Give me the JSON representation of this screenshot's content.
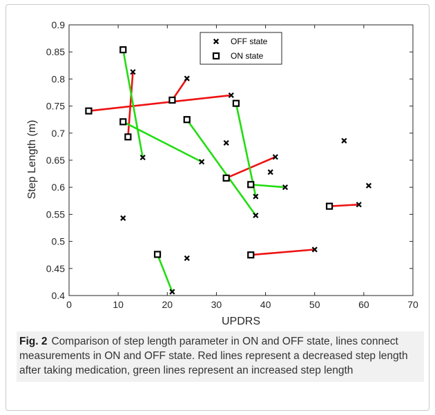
{
  "chart_data": {
    "type": "scatter",
    "xlabel": "UPDRS",
    "ylabel": "Step Length (m)",
    "xlim": [
      0,
      70
    ],
    "ylim": [
      0.4,
      0.9
    ],
    "xticks": [
      0,
      10,
      20,
      30,
      40,
      50,
      60,
      70
    ],
    "yticks": [
      0.4,
      0.45,
      0.5,
      0.55,
      0.6,
      0.65,
      0.7,
      0.75,
      0.8,
      0.85,
      0.9
    ],
    "grid": false,
    "legend_position": "top-center",
    "series": [
      {
        "name": "OFF state",
        "marker": "x",
        "points": [
          [
            13,
            0.813
          ],
          [
            24,
            0.801
          ],
          [
            33,
            0.77
          ],
          [
            56,
            0.686
          ],
          [
            32,
            0.682
          ],
          [
            15,
            0.655
          ],
          [
            42,
            0.656
          ],
          [
            27,
            0.647
          ],
          [
            41,
            0.628
          ],
          [
            61,
            0.603
          ],
          [
            44,
            0.6
          ],
          [
            38,
            0.583
          ],
          [
            59,
            0.568
          ],
          [
            38,
            0.548
          ],
          [
            11,
            0.543
          ],
          [
            50,
            0.485
          ],
          [
            24,
            0.469
          ],
          [
            21,
            0.407
          ]
        ]
      },
      {
        "name": "ON state",
        "marker": "square",
        "points": [
          [
            11,
            0.854
          ],
          [
            34,
            0.755
          ],
          [
            21,
            0.761
          ],
          [
            4,
            0.741
          ],
          [
            11,
            0.721
          ],
          [
            24,
            0.725
          ],
          [
            12,
            0.693
          ],
          [
            32,
            0.617
          ],
          [
            37,
            0.605
          ],
          [
            53,
            0.565
          ],
          [
            37,
            0.475
          ],
          [
            18,
            0.476
          ]
        ]
      }
    ],
    "connections": [
      {
        "on": [
          4,
          0.741
        ],
        "off": [
          33,
          0.77
        ],
        "color": "red"
      },
      {
        "on": [
          12,
          0.693
        ],
        "off": [
          13,
          0.813
        ],
        "color": "red"
      },
      {
        "on": [
          21,
          0.761
        ],
        "off": [
          24,
          0.801
        ],
        "color": "red"
      },
      {
        "on": [
          32,
          0.617
        ],
        "off": [
          42,
          0.656
        ],
        "color": "red"
      },
      {
        "on": [
          53,
          0.565
        ],
        "off": [
          59,
          0.568
        ],
        "color": "red"
      },
      {
        "on": [
          37,
          0.475
        ],
        "off": [
          50,
          0.485
        ],
        "color": "red"
      },
      {
        "on": [
          11,
          0.854
        ],
        "off": [
          15,
          0.655
        ],
        "color": "green"
      },
      {
        "on": [
          11,
          0.721
        ],
        "off": [
          27,
          0.647
        ],
        "color": "green"
      },
      {
        "on": [
          24,
          0.725
        ],
        "off": [
          38,
          0.548
        ],
        "color": "green"
      },
      {
        "on": [
          34,
          0.755
        ],
        "off": [
          38,
          0.583
        ],
        "color": "green"
      },
      {
        "on": [
          37,
          0.605
        ],
        "off": [
          44,
          0.6
        ],
        "color": "green"
      },
      {
        "on": [
          18,
          0.476
        ],
        "off": [
          21,
          0.407
        ],
        "color": "green"
      }
    ],
    "colors": {
      "red": "#ee1111",
      "green": "#22dd11",
      "axis": "#262626"
    }
  },
  "caption": {
    "label": "Fig. 2",
    "text": "Comparison of step length parameter in ON and OFF state, lines connect measurements in ON and OFF state. Red lines represent a decreased step length after taking medication, green lines represent an increased step length"
  }
}
